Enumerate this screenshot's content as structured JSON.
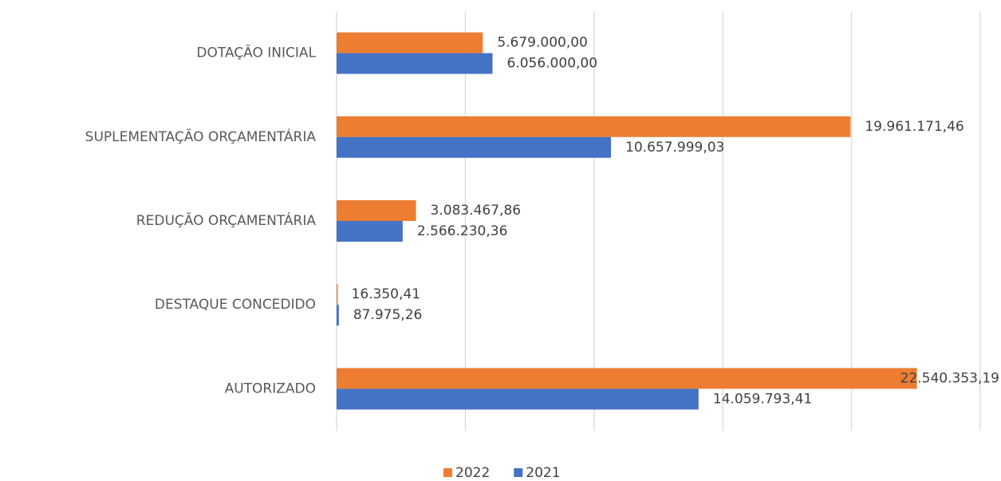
{
  "chart_data": {
    "type": "bar",
    "orientation": "horizontal",
    "categories": [
      "DOTAÇÃO INICIAL",
      "SUPLEMENTAÇÃO ORÇAMENTÁRIA",
      "REDUÇÃO ORÇAMENTÁRIA",
      "DESTAQUE CONCEDIDO",
      "AUTORIZADO"
    ],
    "series": [
      {
        "name": "2022",
        "color": "#ed7d31",
        "values": [
          5679000.0,
          19961171.46,
          3083467.86,
          16350.41,
          22540353.19
        ],
        "value_labels": [
          "5.679.000,00",
          "19.961.171,46",
          "3.083.467,86",
          "16.350,41",
          "22.540.353,19"
        ]
      },
      {
        "name": "2021",
        "color": "#4472c4",
        "values": [
          6056000.0,
          10657999.03,
          2566230.36,
          87975.26,
          14059793.41
        ],
        "value_labels": [
          "6.056.000,00",
          "10.657.999,03",
          "2.566.230,36",
          "87.975,26",
          "14.059.793,41"
        ]
      }
    ],
    "xlim": [
      0,
      25000000
    ],
    "xticks": [
      0,
      5000000,
      10000000,
      15000000,
      20000000,
      25000000
    ],
    "grid": true,
    "legend": "bottom"
  }
}
